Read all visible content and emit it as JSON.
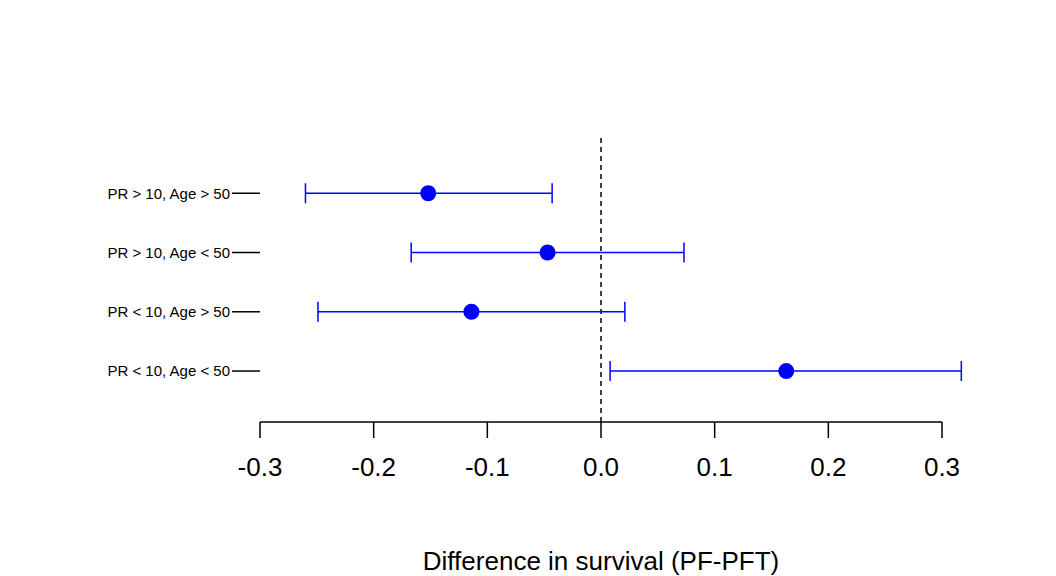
{
  "chart_data": {
    "type": "scatter",
    "orientation": "horizontal",
    "categories": [
      "PR > 10, Age > 50",
      "PR > 10, Age < 50",
      "PR < 10, Age > 50",
      "PR < 10, Age < 50"
    ],
    "values": [
      -0.152,
      -0.047,
      -0.114,
      0.163
    ],
    "error_low": [
      -0.26,
      -0.167,
      -0.249,
      0.008
    ],
    "error_high": [
      -0.043,
      0.073,
      0.021,
      0.317
    ],
    "color": "#0000ff",
    "marker": "circle",
    "xlabel": "Difference in survival (PF-PFT)",
    "xlim": [
      -0.3,
      0.3
    ],
    "xticks": [
      -0.3,
      -0.2,
      -0.1,
      {
        "value": 0,
        "label": "0.0"
      },
      0.1,
      0.2,
      0.3
    ],
    "reference_line": 0,
    "line_style": "dashed",
    "grid": false
  }
}
